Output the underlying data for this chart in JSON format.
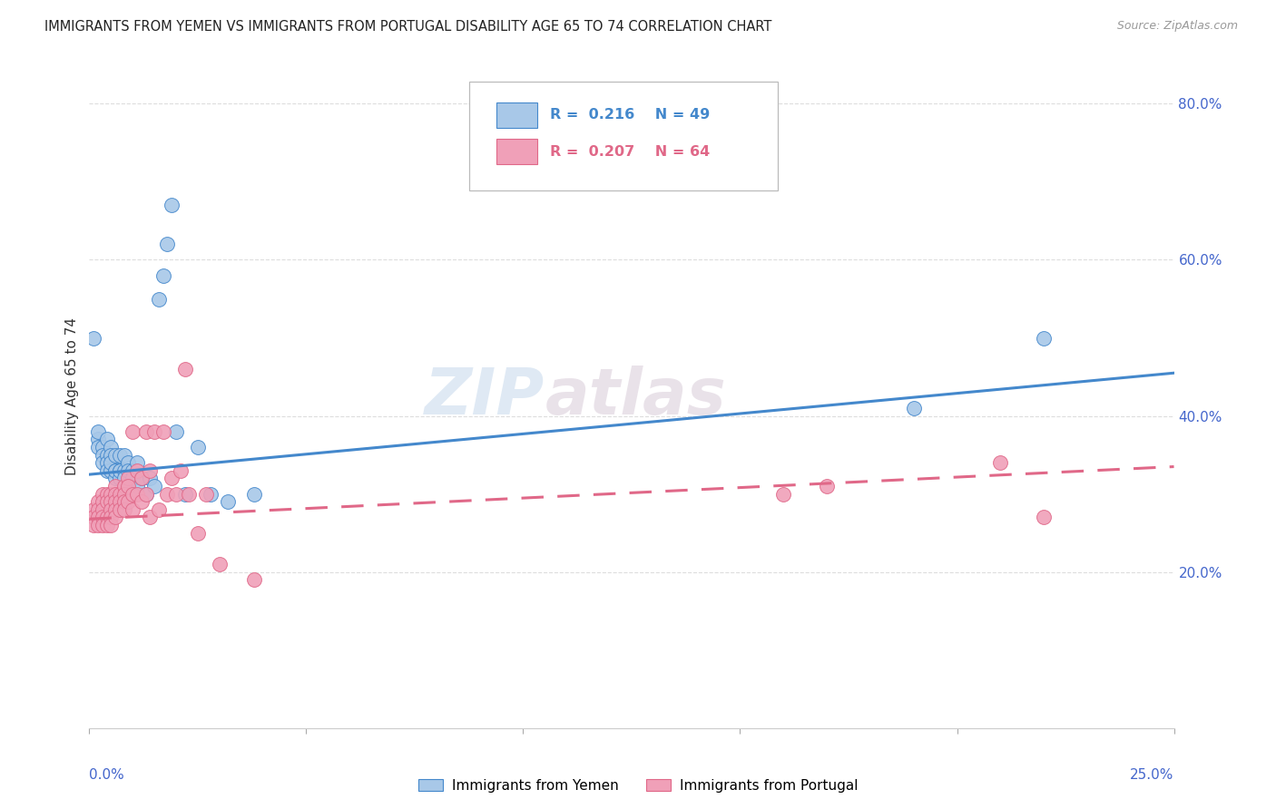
{
  "title": "IMMIGRANTS FROM YEMEN VS IMMIGRANTS FROM PORTUGAL DISABILITY AGE 65 TO 74 CORRELATION CHART",
  "source": "Source: ZipAtlas.com",
  "ylabel": "Disability Age 65 to 74",
  "xmin": 0.0,
  "xmax": 0.25,
  "ymin": 0.0,
  "ymax": 0.85,
  "right_yticklabels": [
    "20.0%",
    "40.0%",
    "60.0%",
    "80.0%"
  ],
  "right_yticks": [
    0.2,
    0.4,
    0.6,
    0.8
  ],
  "color_yemen": "#a8c8e8",
  "color_portugal": "#f0a0b8",
  "color_trend_yemen": "#4488cc",
  "color_trend_portugal": "#e06888",
  "color_axis_labels": "#4466cc",
  "color_title": "#222222",
  "watermark_zip": "ZIP",
  "watermark_atlas": "atlas",
  "trend_yemen_x0": 0.0,
  "trend_yemen_y0": 0.325,
  "trend_yemen_x1": 0.25,
  "trend_yemen_y1": 0.455,
  "trend_portugal_x0": 0.0,
  "trend_portugal_y0": 0.268,
  "trend_portugal_x1": 0.25,
  "trend_portugal_y1": 0.335,
  "yemen_x": [
    0.001,
    0.002,
    0.002,
    0.002,
    0.003,
    0.003,
    0.003,
    0.004,
    0.004,
    0.004,
    0.004,
    0.005,
    0.005,
    0.005,
    0.005,
    0.006,
    0.006,
    0.006,
    0.006,
    0.007,
    0.007,
    0.007,
    0.007,
    0.008,
    0.008,
    0.008,
    0.009,
    0.009,
    0.009,
    0.01,
    0.01,
    0.011,
    0.011,
    0.012,
    0.013,
    0.014,
    0.015,
    0.016,
    0.017,
    0.018,
    0.019,
    0.02,
    0.022,
    0.025,
    0.028,
    0.032,
    0.038,
    0.19,
    0.22
  ],
  "yemen_y": [
    0.5,
    0.37,
    0.36,
    0.38,
    0.36,
    0.35,
    0.34,
    0.35,
    0.37,
    0.34,
    0.33,
    0.36,
    0.35,
    0.33,
    0.34,
    0.35,
    0.33,
    0.32,
    0.33,
    0.35,
    0.33,
    0.32,
    0.33,
    0.35,
    0.33,
    0.32,
    0.34,
    0.33,
    0.31,
    0.33,
    0.32,
    0.31,
    0.34,
    0.32,
    0.3,
    0.32,
    0.31,
    0.55,
    0.58,
    0.62,
    0.67,
    0.38,
    0.3,
    0.36,
    0.3,
    0.29,
    0.3,
    0.41,
    0.5
  ],
  "portugal_x": [
    0.001,
    0.001,
    0.001,
    0.002,
    0.002,
    0.002,
    0.002,
    0.003,
    0.003,
    0.003,
    0.003,
    0.003,
    0.004,
    0.004,
    0.004,
    0.004,
    0.005,
    0.005,
    0.005,
    0.005,
    0.005,
    0.006,
    0.006,
    0.006,
    0.006,
    0.006,
    0.007,
    0.007,
    0.007,
    0.008,
    0.008,
    0.008,
    0.008,
    0.009,
    0.009,
    0.009,
    0.01,
    0.01,
    0.01,
    0.011,
    0.011,
    0.012,
    0.012,
    0.013,
    0.013,
    0.014,
    0.014,
    0.015,
    0.016,
    0.017,
    0.018,
    0.019,
    0.02,
    0.021,
    0.022,
    0.023,
    0.025,
    0.027,
    0.03,
    0.038,
    0.16,
    0.17,
    0.21,
    0.22
  ],
  "portugal_y": [
    0.28,
    0.27,
    0.26,
    0.29,
    0.28,
    0.27,
    0.26,
    0.3,
    0.29,
    0.28,
    0.27,
    0.26,
    0.3,
    0.29,
    0.27,
    0.26,
    0.3,
    0.29,
    0.28,
    0.27,
    0.26,
    0.31,
    0.3,
    0.29,
    0.28,
    0.27,
    0.3,
    0.29,
    0.28,
    0.31,
    0.3,
    0.29,
    0.28,
    0.32,
    0.31,
    0.29,
    0.38,
    0.3,
    0.28,
    0.33,
    0.3,
    0.32,
    0.29,
    0.38,
    0.3,
    0.33,
    0.27,
    0.38,
    0.28,
    0.38,
    0.3,
    0.32,
    0.3,
    0.33,
    0.46,
    0.3,
    0.25,
    0.3,
    0.21,
    0.19,
    0.3,
    0.31,
    0.34,
    0.27
  ]
}
